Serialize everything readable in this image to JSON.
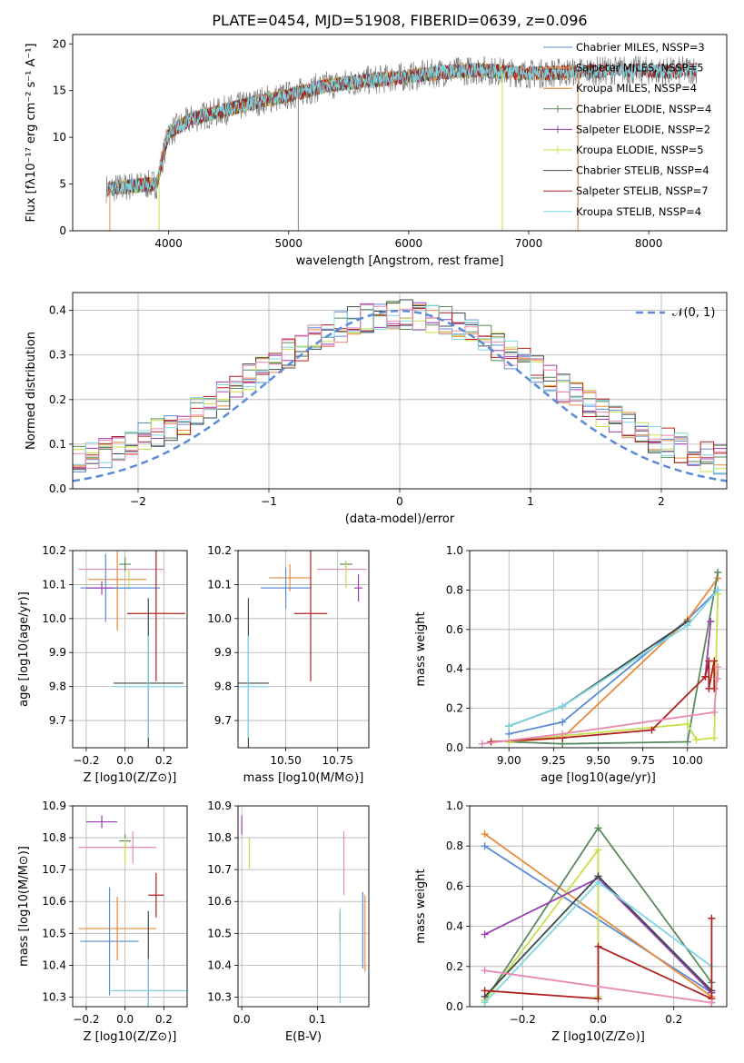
{
  "figure": {
    "title": "PLATE=0454, MJD=51908, FIBERID=0639, z=0.096"
  },
  "colors": {
    "chabrier_miles": "#5b8bd6",
    "salpeter_miles": "#ea8a3b",
    "kroupa_miles": "#e07a1f",
    "chabrier_elodie": "#5a8a5e",
    "salpeter_elodie": "#9a3fb0",
    "kroupa_elodie": "#c7e04a",
    "chabrier_stelib": "#3c4a4f",
    "salpeter_stelib": "#b0211f",
    "kroupa_stelib": "#7fd6e0",
    "extra_pink": "#e88ab4",
    "data_gray": "#808080",
    "normal_curve": "#5b8bd6"
  },
  "chart_data": [
    {
      "id": "spectrum",
      "type": "line",
      "title": "PLATE=0454, MJD=51908, FIBERID=0639, z=0.096",
      "xlabel": "wavelength [Angstrom, rest frame]",
      "ylabel": "Flux [fλ10⁻¹⁷ erg cm⁻² s⁻¹ A⁻¹]",
      "xlim": [
        3200,
        8650
      ],
      "ylim": [
        0,
        21
      ],
      "xticks": [
        4000,
        5000,
        6000,
        7000,
        8000
      ],
      "yticks": [
        0,
        5,
        10,
        15,
        20
      ],
      "grid": false,
      "legend_position": "top-right",
      "legend": [
        {
          "label": "Chabrier MILES, NSSP=3",
          "color_key": "chabrier_miles"
        },
        {
          "label": "Salpeter MILES, NSSP=5",
          "color_key": "salpeter_miles"
        },
        {
          "label": "Kroupa MILES, NSSP=4",
          "color_key": "kroupa_miles"
        },
        {
          "label": "Chabrier ELODIE, NSSP=4",
          "color_key": "chabrier_elodie"
        },
        {
          "label": "Salpeter ELODIE, NSSP=2",
          "color_key": "salpeter_elodie"
        },
        {
          "label": "Kroupa ELODIE, NSSP=5",
          "color_key": "kroupa_elodie"
        },
        {
          "label": "Chabrier STELIB, NSSP=4",
          "color_key": "chabrier_stelib"
        },
        {
          "label": "Salpeter STELIB, NSSP=7",
          "color_key": "salpeter_stelib"
        },
        {
          "label": "Kroupa STELIB, NSSP=4",
          "color_key": "kroupa_stelib"
        }
      ],
      "continuum": {
        "x": [
          3500,
          3700,
          3900,
          4000,
          4200,
          4500,
          4800,
          5000,
          5300,
          5600,
          6000,
          6300,
          6600,
          7000,
          7400,
          7800,
          8200,
          8400
        ],
        "y": [
          4.5,
          4.8,
          5.0,
          10.5,
          12.0,
          13.0,
          14.0,
          14.5,
          15.5,
          16.0,
          16.5,
          17.0,
          17.2,
          16.8,
          17.0,
          17.2,
          17.0,
          17.3
        ]
      }
    },
    {
      "id": "residuals",
      "type": "line",
      "xlabel": "(data-model)/error",
      "ylabel": "Normed distribution",
      "xlim": [
        -2.5,
        2.5
      ],
      "ylim": [
        0,
        0.44
      ],
      "xticks": [
        -2,
        -1,
        0,
        1,
        2
      ],
      "yticks": [
        0.0,
        0.1,
        0.2,
        0.3,
        0.4
      ],
      "grid": true,
      "legend_position": "top-right",
      "normal_curve": {
        "label": "𝒩(0, 1)",
        "mean": 0,
        "sigma": 1
      },
      "histogram_bin_width": 0.1
    },
    {
      "id": "age_vs_Z",
      "type": "scatter",
      "xlabel": "Z [log10(Z/Z⊙)]",
      "ylabel": "age  [log10(age/yr)]",
      "xlim": [
        -0.27,
        0.32
      ],
      "ylim": [
        9.62,
        10.2
      ],
      "xticks": [
        -0.2,
        0.0,
        0.2
      ],
      "yticks": [
        9.7,
        9.8,
        9.9,
        10.0,
        10.1,
        10.2
      ],
      "grid": true,
      "points": [
        {
          "x": -0.02,
          "y": 10.145,
          "xerr": 0.22,
          "yerr": 0.0,
          "color_key": "extra_pink"
        },
        {
          "x": -0.04,
          "y": 10.115,
          "xerr": 0.15,
          "yerr": 0.15,
          "color_key": "salpeter_miles"
        },
        {
          "x": -0.1,
          "y": 10.09,
          "xerr": 0.13,
          "yerr": 0.1,
          "color_key": "chabrier_miles"
        },
        {
          "x": -0.12,
          "y": 10.09,
          "xerr": 0.08,
          "yerr": 0.02,
          "color_key": "salpeter_elodie"
        },
        {
          "x": 0.0,
          "y": 10.16,
          "xerr": 0.03,
          "yerr": 0.02,
          "color_key": "chabrier_elodie"
        },
        {
          "x": 0.02,
          "y": 10.115,
          "xerr": 0.0,
          "yerr": 0.03,
          "color_key": "kroupa_elodie"
        },
        {
          "x": 0.06,
          "y": 10.09,
          "xerr": 0.12,
          "yerr": 0.0,
          "color_key": "chabrier_miles"
        },
        {
          "x": 0.16,
          "y": 10.015,
          "xerr": 0.15,
          "yerr": 0.2,
          "color_key": "salpeter_stelib"
        },
        {
          "x": 0.12,
          "y": 9.81,
          "xerr": 0.18,
          "yerr": 0.25,
          "color_key": "chabrier_stelib"
        },
        {
          "x": 0.12,
          "y": 9.8,
          "xerr": 0.18,
          "yerr": 0.15,
          "color_key": "kroupa_stelib"
        }
      ]
    },
    {
      "id": "age_vs_mass",
      "type": "scatter",
      "xlabel": "mass [log10(M/M⊙)]",
      "ylabel": "",
      "xlim": [
        10.27,
        10.9
      ],
      "ylim": [
        9.62,
        10.2
      ],
      "xticks": [
        10.5,
        10.75
      ],
      "yticks": [
        9.7,
        9.8,
        9.9,
        10.0,
        10.1,
        10.2
      ],
      "grid": true,
      "points": [
        {
          "x": 10.52,
          "y": 10.12,
          "xerr": 0.1,
          "yerr": 0.04,
          "color_key": "salpeter_miles"
        },
        {
          "x": 10.5,
          "y": 10.09,
          "xerr": 0.12,
          "yerr": 0.06,
          "color_key": "chabrier_miles"
        },
        {
          "x": 10.77,
          "y": 10.145,
          "xerr": 0.12,
          "yerr": 0.0,
          "color_key": "extra_pink"
        },
        {
          "x": 10.79,
          "y": 10.16,
          "xerr": 0.03,
          "yerr": 0.01,
          "color_key": "chabrier_elodie"
        },
        {
          "x": 10.79,
          "y": 10.13,
          "xerr": 0.0,
          "yerr": 0.04,
          "color_key": "kroupa_elodie"
        },
        {
          "x": 10.85,
          "y": 10.09,
          "xerr": 0.02,
          "yerr": 0.04,
          "color_key": "salpeter_elodie"
        },
        {
          "x": 10.62,
          "y": 10.015,
          "xerr": 0.08,
          "yerr": 0.2,
          "color_key": "salpeter_stelib"
        },
        {
          "x": 10.32,
          "y": 9.81,
          "xerr": 0.1,
          "yerr": 0.25,
          "color_key": "chabrier_stelib"
        },
        {
          "x": 10.32,
          "y": 9.8,
          "xerr": 0.1,
          "yerr": 0.15,
          "color_key": "kroupa_stelib"
        }
      ]
    },
    {
      "id": "weight_vs_age",
      "type": "line",
      "xlabel": "age  [log10(age/yr)]",
      "ylabel": "mass weight",
      "xlim": [
        8.78,
        10.22
      ],
      "ylim": [
        0,
        1
      ],
      "xticks": [
        9.0,
        9.25,
        9.5,
        9.75,
        10.0
      ],
      "yticks": [
        0.0,
        0.2,
        0.4,
        0.6,
        0.8,
        1.0
      ],
      "grid": true,
      "series": [
        {
          "color_key": "chabrier_miles",
          "x": [
            9.0,
            9.3,
            10.0,
            10.17
          ],
          "y": [
            0.07,
            0.13,
            0.65,
            0.8
          ]
        },
        {
          "color_key": "salpeter_miles",
          "x": [
            9.0,
            9.3,
            10.0,
            10.17
          ],
          "y": [
            0.03,
            0.05,
            0.65,
            0.86
          ]
        },
        {
          "color_key": "chabrier_elodie",
          "x": [
            9.0,
            9.3,
            10.0,
            10.17
          ],
          "y": [
            0.03,
            0.02,
            0.03,
            0.89
          ]
        },
        {
          "color_key": "salpeter_elodie",
          "x": [
            10.1,
            10.13
          ],
          "y": [
            0.36,
            0.64
          ]
        },
        {
          "color_key": "kroupa_elodie",
          "x": [
            9.0,
            9.3,
            10.0,
            10.05,
            10.15,
            10.17
          ],
          "y": [
            0.03,
            0.06,
            0.12,
            0.04,
            0.05,
            0.78
          ]
        },
        {
          "color_key": "chabrier_stelib",
          "x": [
            9.0,
            9.3,
            10.0
          ],
          "y": [
            0.11,
            0.21,
            0.64
          ]
        },
        {
          "color_key": "salpeter_stelib",
          "x": [
            8.9,
            9.3,
            9.8,
            10.1,
            10.12,
            10.12,
            10.15,
            10.15
          ],
          "y": [
            0.03,
            0.05,
            0.09,
            0.36,
            0.44,
            0.3,
            0.44,
            0.3
          ]
        },
        {
          "color_key": "kroupa_stelib",
          "x": [
            9.0,
            9.3,
            10.0,
            10.17
          ],
          "y": [
            0.11,
            0.21,
            0.62,
            0.8
          ]
        },
        {
          "color_key": "extra_pink",
          "x": [
            8.85,
            9.3,
            10.15,
            10.17,
            10.17
          ],
          "y": [
            0.02,
            0.07,
            0.18,
            0.41,
            0.35
          ]
        }
      ]
    },
    {
      "id": "mass_vs_Z",
      "type": "scatter",
      "xlabel": "Z [log10(Z/Z⊙)]",
      "ylabel": "mass [log10(M/M⊙)]",
      "xlim": [
        -0.27,
        0.32
      ],
      "ylim": [
        10.27,
        10.9
      ],
      "xticks": [
        -0.2,
        0.0,
        0.2
      ],
      "yticks": [
        10.3,
        10.4,
        10.5,
        10.6,
        10.7,
        10.8,
        10.9
      ],
      "grid": true,
      "points": [
        {
          "x": -0.12,
          "y": 10.85,
          "xerr": 0.08,
          "yerr": 0.02,
          "color_key": "salpeter_elodie"
        },
        {
          "x": -0.04,
          "y": 10.77,
          "xerr": 0.2,
          "yerr": 0.0,
          "color_key": "extra_pink"
        },
        {
          "x": 0.04,
          "y": 10.77,
          "xerr": 0.0,
          "yerr": 0.05,
          "color_key": "extra_pink"
        },
        {
          "x": 0.0,
          "y": 10.79,
          "xerr": 0.03,
          "yerr": 0.02,
          "color_key": "chabrier_elodie"
        },
        {
          "x": 0.0,
          "y": 10.76,
          "xerr": 0.0,
          "yerr": 0.04,
          "color_key": "kroupa_elodie"
        },
        {
          "x": 0.16,
          "y": 10.62,
          "xerr": 0.04,
          "yerr": 0.07,
          "color_key": "salpeter_stelib"
        },
        {
          "x": -0.04,
          "y": 10.515,
          "xerr": 0.2,
          "yerr": 0.1,
          "color_key": "salpeter_miles"
        },
        {
          "x": -0.08,
          "y": 10.475,
          "xerr": 0.15,
          "yerr": 0.17,
          "color_key": "chabrier_miles"
        },
        {
          "x": 0.12,
          "y": 10.32,
          "xerr": 0.18,
          "yerr": 0.25,
          "color_key": "chabrier_stelib"
        },
        {
          "x": 0.12,
          "y": 10.32,
          "xerr": 0.2,
          "yerr": 0.1,
          "color_key": "kroupa_stelib"
        }
      ]
    },
    {
      "id": "mass_vs_ebv",
      "type": "scatter",
      "xlabel": "E(B-V)",
      "ylabel": "",
      "xlim": [
        -0.005,
        0.168
      ],
      "ylim": [
        10.27,
        10.9
      ],
      "xticks": [
        0.0,
        0.1
      ],
      "yticks": [
        10.3,
        10.4,
        10.5,
        10.6,
        10.7,
        10.8,
        10.9
      ],
      "grid": true,
      "points": [
        {
          "x": 0.0,
          "y": 10.84,
          "xerr": 0.0,
          "yerr": 0.03,
          "color_key": "salpeter_elodie"
        },
        {
          "x": 0.01,
          "y": 10.75,
          "xerr": 0.0,
          "yerr": 0.05,
          "color_key": "kroupa_elodie"
        },
        {
          "x": 0.13,
          "y": 10.52,
          "xerr": 0.0,
          "yerr": 0.05,
          "color_key": "salpeter_stelib"
        },
        {
          "x": 0.135,
          "y": 10.72,
          "xerr": 0.0,
          "yerr": 0.1,
          "color_key": "extra_pink"
        },
        {
          "x": 0.13,
          "y": 10.43,
          "xerr": 0.0,
          "yerr": 0.15,
          "color_key": "kroupa_stelib"
        },
        {
          "x": 0.16,
          "y": 10.51,
          "xerr": 0.0,
          "yerr": 0.12,
          "color_key": "chabrier_miles"
        },
        {
          "x": 0.163,
          "y": 10.5,
          "xerr": 0.0,
          "yerr": 0.12,
          "color_key": "salpeter_miles"
        }
      ]
    },
    {
      "id": "weight_vs_Z",
      "type": "line",
      "xlabel": "Z [log10(Z/Z⊙)]",
      "ylabel": "mass weight",
      "xlim": [
        -0.34,
        0.34
      ],
      "ylim": [
        0,
        1
      ],
      "xticks": [
        -0.2,
        0.0,
        0.2
      ],
      "yticks": [
        0.0,
        0.2,
        0.4,
        0.6,
        0.8,
        1.0
      ],
      "grid": true,
      "series": [
        {
          "color_key": "chabrier_miles",
          "x": [
            -0.3,
            0.3
          ],
          "y": [
            0.8,
            0.07
          ]
        },
        {
          "color_key": "salpeter_miles",
          "x": [
            -0.3,
            0.3
          ],
          "y": [
            0.86,
            0.05
          ]
        },
        {
          "color_key": "chabrier_elodie",
          "x": [
            -0.3,
            0.0,
            0.3
          ],
          "y": [
            0.03,
            0.89,
            0.12
          ]
        },
        {
          "color_key": "kroupa_elodie",
          "x": [
            -0.3,
            0.0,
            0.0
          ],
          "y": [
            0.03,
            0.78,
            0.05
          ]
        },
        {
          "color_key": "salpeter_elodie",
          "x": [
            -0.3,
            0.0,
            0.3
          ],
          "y": [
            0.36,
            0.64,
            0.07
          ]
        },
        {
          "color_key": "chabrier_stelib",
          "x": [
            -0.3,
            0.0,
            0.3
          ],
          "y": [
            0.05,
            0.65,
            0.08
          ]
        },
        {
          "color_key": "kroupa_stelib",
          "x": [
            -0.3,
            0.0,
            0.3
          ],
          "y": [
            0.02,
            0.62,
            0.2
          ]
        },
        {
          "color_key": "salpeter_stelib",
          "x": [
            -0.3,
            0.0,
            0.0,
            0.3,
            0.3,
            0.3
          ],
          "y": [
            0.08,
            0.04,
            0.3,
            0.04,
            0.44,
            0.02
          ]
        },
        {
          "color_key": "extra_pink",
          "x": [
            -0.3,
            0.3
          ],
          "y": [
            0.18,
            0.02
          ]
        }
      ]
    }
  ]
}
